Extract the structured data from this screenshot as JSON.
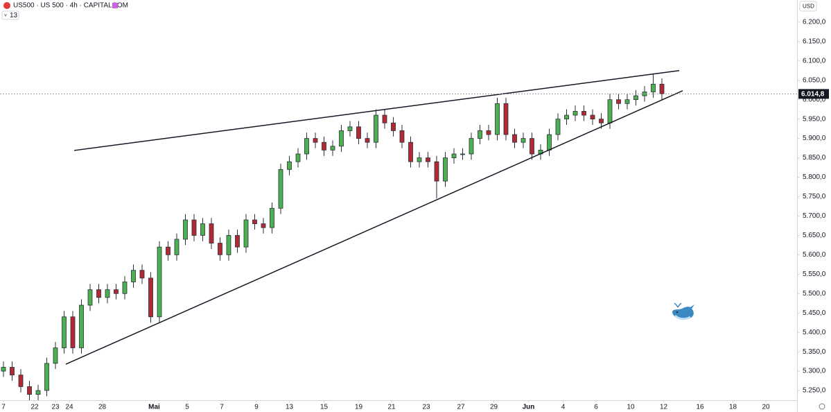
{
  "chart_data": {
    "type": "candlestick",
    "title": "US500 · US 500 · 4h · CAPITALCOM",
    "indicator": "13",
    "currency": "USD",
    "up_color": "#4caf50",
    "down_color": "#b22833",
    "xlim": [
      0,
      46
    ],
    "ylim": [
      5225,
      6257
    ],
    "xticks": [
      {
        "value": 0.2,
        "label": "7"
      },
      {
        "value": 2,
        "label": "22"
      },
      {
        "value": 3.2,
        "label": "23"
      },
      {
        "value": 4,
        "label": "24"
      },
      {
        "value": 5.9,
        "label": "28"
      },
      {
        "value": 8.9,
        "label": "Mai"
      },
      {
        "value": 10.8,
        "label": "5"
      },
      {
        "value": 12.8,
        "label": "7"
      },
      {
        "value": 14.8,
        "label": "9"
      },
      {
        "value": 16.7,
        "label": "13"
      },
      {
        "value": 18.7,
        "label": "15"
      },
      {
        "value": 20.7,
        "label": "19"
      },
      {
        "value": 22.6,
        "label": "21"
      },
      {
        "value": 24.6,
        "label": "23"
      },
      {
        "value": 26.6,
        "label": "27"
      },
      {
        "value": 28.5,
        "label": "29"
      },
      {
        "value": 30.5,
        "label": "Jun"
      },
      {
        "value": 32.5,
        "label": "4"
      },
      {
        "value": 34.4,
        "label": "6"
      },
      {
        "value": 36.4,
        "label": "10"
      },
      {
        "value": 38.3,
        "label": "12"
      },
      {
        "value": 40.4,
        "label": "16"
      },
      {
        "value": 42.3,
        "label": "18"
      },
      {
        "value": 44.2,
        "label": "20"
      }
    ],
    "yticks": [
      {
        "value": 5250,
        "label": "5.250,0"
      },
      {
        "value": 5300,
        "label": "5.300,0"
      },
      {
        "value": 5350,
        "label": "5.350,0"
      },
      {
        "value": 5400,
        "label": "5.400,0"
      },
      {
        "value": 5450,
        "label": "5.450,0"
      },
      {
        "value": 5500,
        "label": "5.500,0"
      },
      {
        "value": 5550,
        "label": "5.550,0"
      },
      {
        "value": 5600,
        "label": "5.600,0"
      },
      {
        "value": 5650,
        "label": "5.650,0"
      },
      {
        "value": 5700,
        "label": "5.700,0"
      },
      {
        "value": 5750,
        "label": "5.750,0"
      },
      {
        "value": 5800,
        "label": "5.800,0"
      },
      {
        "value": 5850,
        "label": "5.850,0"
      },
      {
        "value": 5900,
        "label": "5.900,0"
      },
      {
        "value": 5950,
        "label": "5.950,0"
      },
      {
        "value": 6000,
        "label": "6.000,0"
      },
      {
        "value": 6050,
        "label": "6.050,0"
      },
      {
        "value": 6100,
        "label": "6.100,0"
      },
      {
        "value": 6150,
        "label": "6.150,0"
      },
      {
        "value": 6200,
        "label": "6.200,0"
      }
    ],
    "price_line": {
      "value": 6014.8,
      "label": "6.014,8"
    },
    "x": [
      0.2,
      0.7,
      1.2,
      1.7,
      2.2,
      2.7,
      3.2,
      3.7,
      4.2,
      4.7,
      5.2,
      5.7,
      6.2,
      6.7,
      7.2,
      7.7,
      8.2,
      8.7,
      9.2,
      9.7,
      10.2,
      10.7,
      11.2,
      11.7,
      12.2,
      12.7,
      13.2,
      13.7,
      14.2,
      14.7,
      15.2,
      15.7,
      16.2,
      16.7,
      17.2,
      17.7,
      18.2,
      18.7,
      19.2,
      19.7,
      20.2,
      20.7,
      21.2,
      21.7,
      22.2,
      22.7,
      23.2,
      23.7,
      24.2,
      24.7,
      25.2,
      25.7,
      26.2,
      26.7,
      27.2,
      27.7,
      28.2,
      28.7,
      29.2,
      29.7,
      30.2,
      30.7,
      31.2,
      31.7,
      32.2,
      32.7,
      33.2,
      33.7,
      34.2,
      34.7,
      35.2,
      35.7,
      36.2,
      36.7,
      37.2,
      37.7,
      38.2
    ],
    "open": [
      5300,
      5310,
      5290,
      5260,
      5240,
      5250,
      5320,
      5360,
      5440,
      5360,
      5470,
      5510,
      5490,
      5510,
      5500,
      5530,
      5560,
      5540,
      5440,
      5620,
      5600,
      5640,
      5690,
      5650,
      5680,
      5630,
      5600,
      5650,
      5620,
      5690,
      5680,
      5670,
      5720,
      5820,
      5840,
      5860,
      5900,
      5890,
      5870,
      5880,
      5920,
      5930,
      5900,
      5890,
      5960,
      5940,
      5920,
      5890,
      5840,
      5850,
      5840,
      5790,
      5850,
      5860,
      5860,
      5900,
      5920,
      5910,
      5990,
      5910,
      5890,
      5900,
      5860,
      5870,
      5910,
      5950,
      5960,
      5970,
      5960,
      5950,
      5940,
      6000,
      5990,
      6000,
      6010,
      6020,
      6040
    ],
    "high": [
      5325,
      5325,
      5305,
      5275,
      5265,
      5335,
      5375,
      5455,
      5455,
      5485,
      5525,
      5525,
      5525,
      5525,
      5545,
      5575,
      5575,
      5555,
      5635,
      5635,
      5655,
      5705,
      5705,
      5695,
      5695,
      5645,
      5665,
      5665,
      5705,
      5705,
      5695,
      5735,
      5835,
      5855,
      5875,
      5915,
      5915,
      5905,
      5895,
      5935,
      5945,
      5945,
      5915,
      5975,
      5975,
      5955,
      5935,
      5905,
      5865,
      5865,
      5855,
      5865,
      5875,
      5875,
      5915,
      5935,
      5935,
      6005,
      6005,
      5925,
      5915,
      5915,
      5885,
      5925,
      5965,
      5975,
      5985,
      5985,
      5975,
      5965,
      6015,
      6015,
      6015,
      6025,
      6035,
      6065,
      6055
    ],
    "low": [
      5285,
      5275,
      5245,
      5225,
      5225,
      5235,
      5305,
      5345,
      5345,
      5345,
      5455,
      5475,
      5475,
      5485,
      5485,
      5515,
      5525,
      5425,
      5425,
      5585,
      5585,
      5625,
      5635,
      5635,
      5615,
      5585,
      5585,
      5605,
      5605,
      5665,
      5655,
      5655,
      5705,
      5805,
      5825,
      5845,
      5875,
      5855,
      5855,
      5865,
      5905,
      5885,
      5875,
      5875,
      5925,
      5905,
      5875,
      5825,
      5825,
      5825,
      5745,
      5775,
      5835,
      5845,
      5845,
      5885,
      5895,
      5895,
      5895,
      5875,
      5875,
      5845,
      5845,
      5855,
      5895,
      5935,
      5945,
      5945,
      5935,
      5925,
      5925,
      5975,
      5975,
      5985,
      5995,
      6005,
      6000
    ],
    "close": [
      5310,
      5290,
      5260,
      5240,
      5250,
      5320,
      5360,
      5440,
      5360,
      5470,
      5510,
      5490,
      5510,
      5500,
      5530,
      5560,
      5540,
      5440,
      5620,
      5600,
      5640,
      5690,
      5650,
      5680,
      5630,
      5600,
      5650,
      5620,
      5690,
      5680,
      5670,
      5720,
      5820,
      5840,
      5860,
      5900,
      5890,
      5870,
      5880,
      5920,
      5930,
      5900,
      5890,
      5960,
      5940,
      5920,
      5890,
      5840,
      5850,
      5840,
      5790,
      5850,
      5860,
      5860,
      5900,
      5920,
      5910,
      5990,
      5910,
      5890,
      5900,
      5860,
      5870,
      5910,
      5950,
      5960,
      5970,
      5960,
      5950,
      5940,
      6000,
      5990,
      6000,
      6010,
      6020,
      6040,
      6015
    ],
    "trendlines": [
      {
        "x": [
          4.28,
          39.2
        ],
        "y": [
          5869,
          6075
        ],
        "color": "#131722"
      },
      {
        "x": [
          3.8,
          39.4
        ],
        "y": [
          5318,
          6023
        ],
        "color": "#131722"
      }
    ]
  }
}
